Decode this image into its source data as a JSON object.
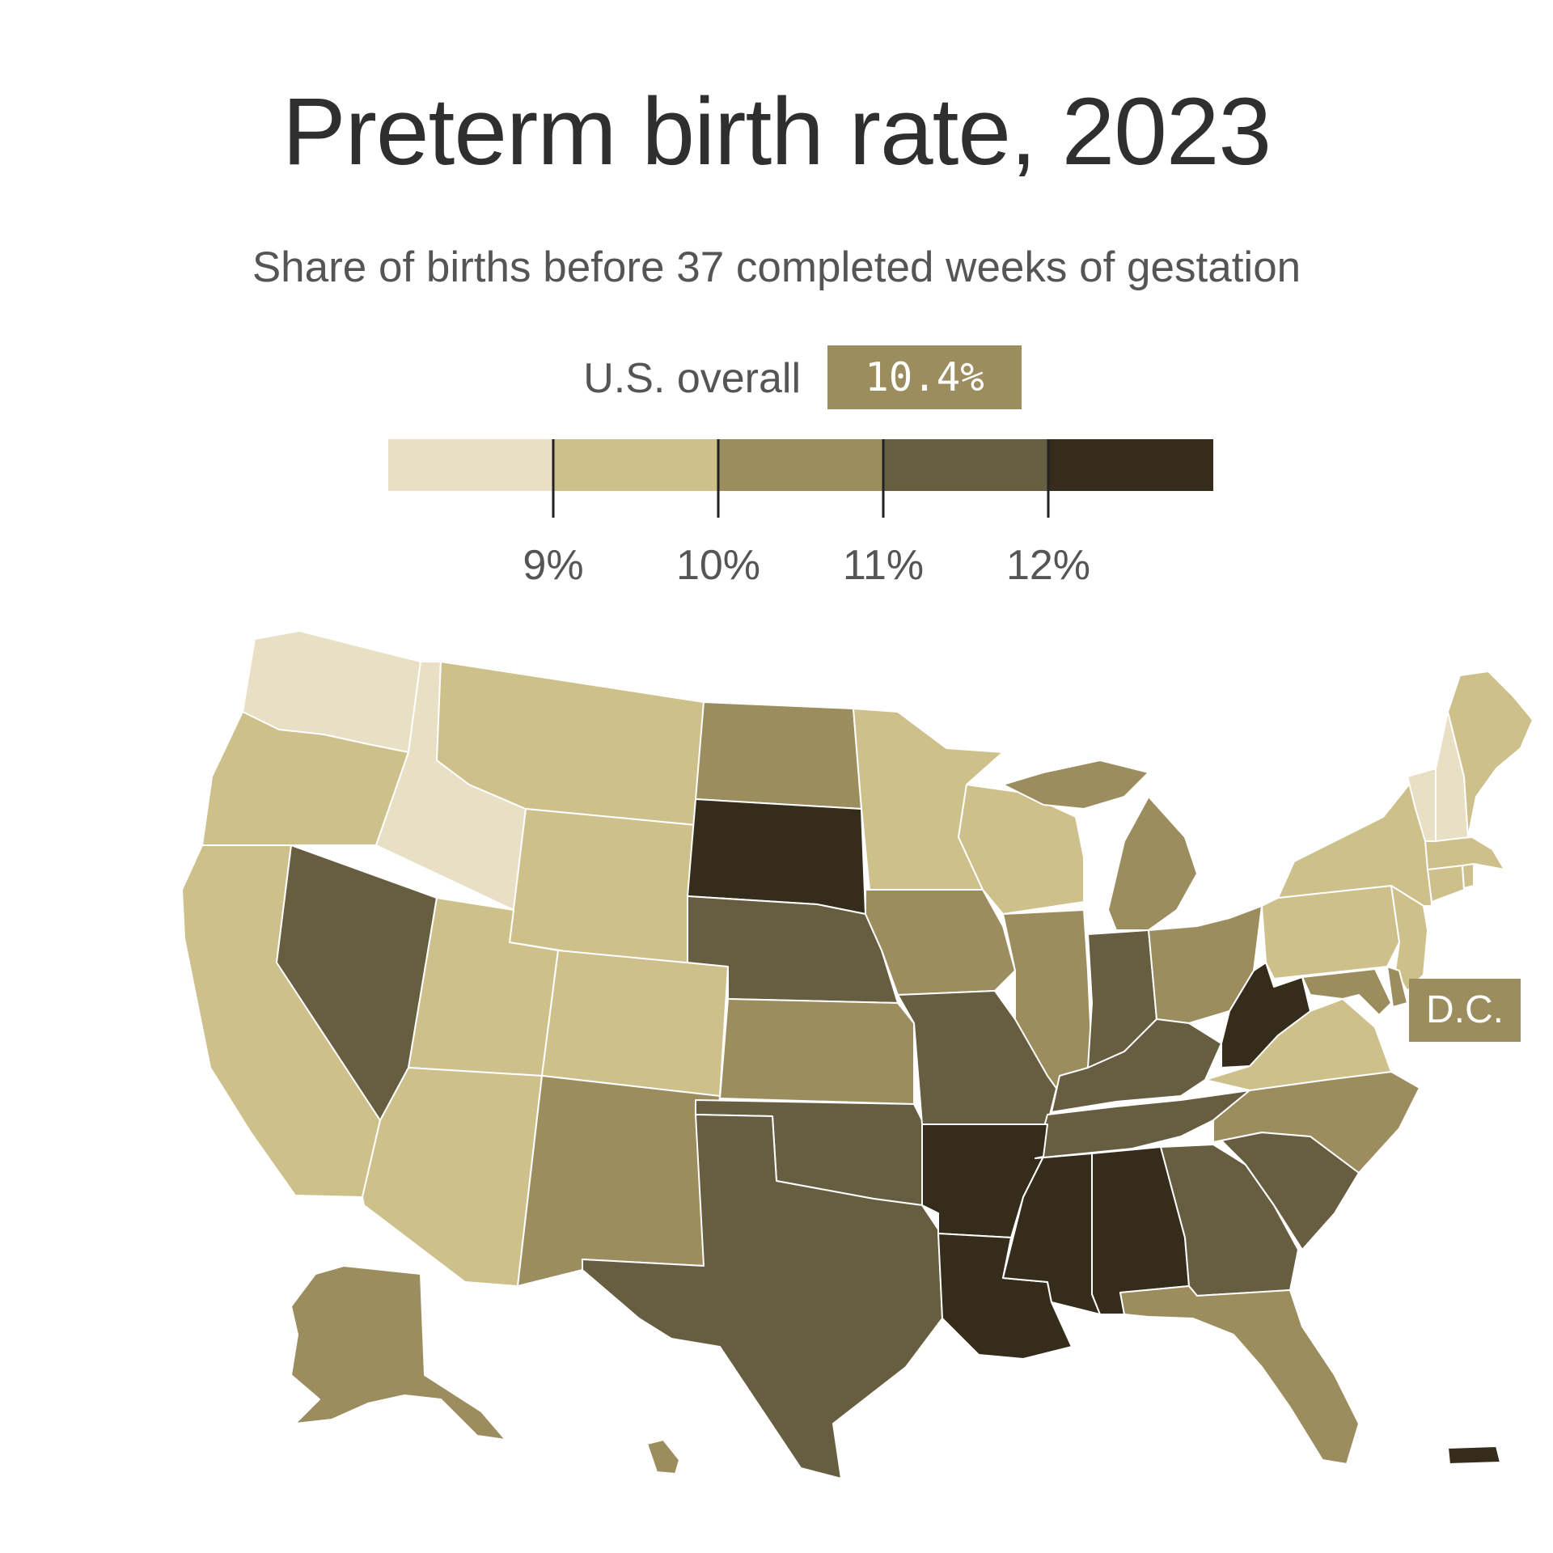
{
  "header": {
    "title": "Preterm birth rate, 2023",
    "subtitle": "Share of births before 37 completed weeks of gestation"
  },
  "overall": {
    "label": "U.S. overall",
    "value": "10.4%",
    "value_num": 10.4
  },
  "legend": {
    "bins": [
      {
        "min": null,
        "max": 9,
        "color": "#e8dfc4"
      },
      {
        "min": 9,
        "max": 10,
        "color": "#cdc08b"
      },
      {
        "min": 10,
        "max": 11,
        "color": "#9b8d5e"
      },
      {
        "min": 11,
        "max": 12,
        "color": "#675d40"
      },
      {
        "min": 12,
        "max": null,
        "color": "#352c1c"
      }
    ],
    "ticks": [
      "9%",
      "10%",
      "11%",
      "12%"
    ]
  },
  "dc_label": "D.C.",
  "chart_data": {
    "type": "choropleth",
    "title": "Preterm birth rate, 2023",
    "subtitle": "Share of births before 37 completed weeks of gestation",
    "unit": "%",
    "bin_edges": [
      9,
      10,
      11,
      12
    ],
    "states": {
      "WA": 1,
      "ID": 1,
      "VT": 1,
      "NH": 1,
      "OR": 2,
      "CA": 2,
      "MT": 2,
      "WY": 2,
      "UT": 2,
      "CO": 2,
      "AZ": 2,
      "MN": 2,
      "WI": 2,
      "NY": 2,
      "PA": 2,
      "NJ": 2,
      "VA": 2,
      "ME": 2,
      "MA": 2,
      "CT": 2,
      "RI": 2,
      "ND": 3,
      "IA": 3,
      "IL": 3,
      "MI": 3,
      "OH": 3,
      "KS": 3,
      "NM": 3,
      "NC": 3,
      "FL": 3,
      "AK": 3,
      "HI": 3,
      "DC": 3,
      "DE": 3,
      "MD": 3,
      "NV": 4,
      "NE": 4,
      "MO": 4,
      "IN": 4,
      "KY": 4,
      "TN": 4,
      "OK": 4,
      "TX": 4,
      "GA": 4,
      "SC": 4,
      "SD": 5,
      "AR": 5,
      "LA": 5,
      "MS": 5,
      "AL": 5,
      "WV": 5,
      "PR": 5
    }
  }
}
